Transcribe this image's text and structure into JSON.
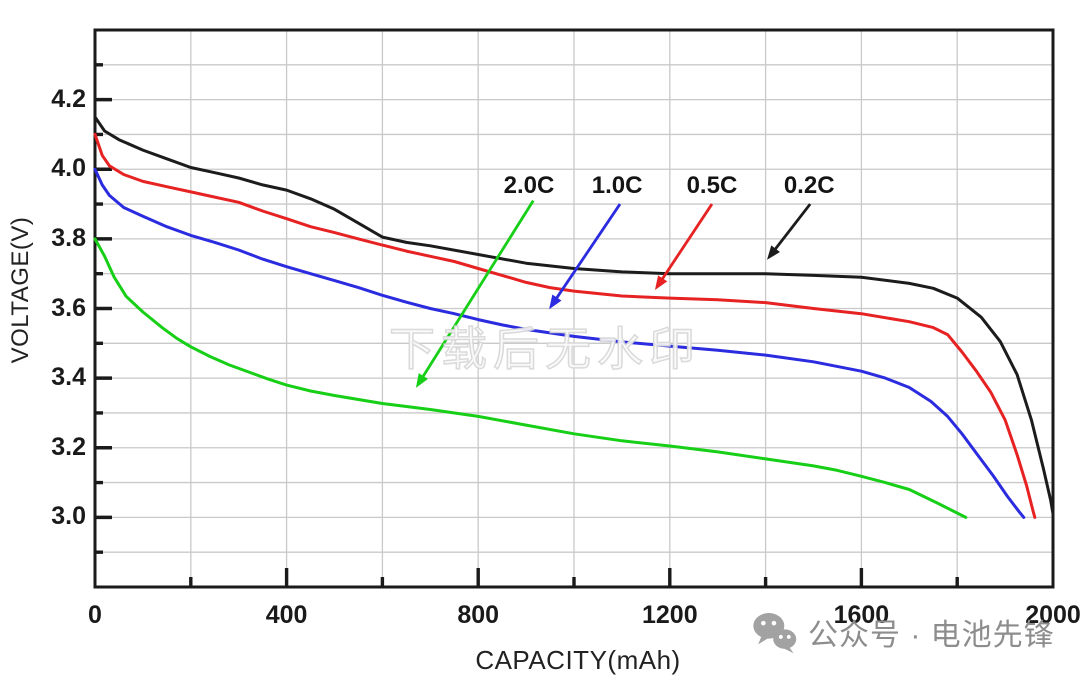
{
  "page": {
    "background": "#ffffff"
  },
  "watermarks": {
    "center_text": "下载后无水印",
    "footer_text": "公众号 · 电池先锋",
    "footer_icon": "wechat-icon",
    "footer_color": "#8d8d8d"
  },
  "chart_data": {
    "type": "line",
    "title": "",
    "xlabel": "CAPACITY(mAh)",
    "ylabel": "VOLTAGE(V)",
    "xlim": [
      0,
      2000
    ],
    "ylim": [
      2.8,
      4.4
    ],
    "grid": true,
    "grid_color": "#c9c9c9",
    "frame_color": "#1a1a1a",
    "x_minor_step": 200,
    "y_minor_step": 0.1,
    "x_ticks": [
      {
        "value": 0,
        "label": "0"
      },
      {
        "value": 400,
        "label": "400"
      },
      {
        "value": 800,
        "label": "800"
      },
      {
        "value": 1200,
        "label": "1200"
      },
      {
        "value": 1600,
        "label": "1600"
      },
      {
        "value": 2000,
        "label": "2000"
      }
    ],
    "y_ticks": [
      {
        "value": 4.2,
        "label": "4.2"
      },
      {
        "value": 4.0,
        "label": "4.0"
      },
      {
        "value": 3.8,
        "label": "3.8"
      },
      {
        "value": 3.6,
        "label": "3.6"
      },
      {
        "value": 3.4,
        "label": "3.4"
      },
      {
        "value": 3.2,
        "label": "3.2"
      },
      {
        "value": 3.0,
        "label": "3.0"
      }
    ],
    "series": [
      {
        "name": "2.0C",
        "color": "#17cf17",
        "points": [
          [
            0,
            3.8
          ],
          [
            20,
            3.75
          ],
          [
            40,
            3.69
          ],
          [
            65,
            3.635
          ],
          [
            100,
            3.59
          ],
          [
            140,
            3.545
          ],
          [
            170,
            3.515
          ],
          [
            200,
            3.49
          ],
          [
            240,
            3.462
          ],
          [
            280,
            3.438
          ],
          [
            320,
            3.418
          ],
          [
            360,
            3.398
          ],
          [
            400,
            3.38
          ],
          [
            450,
            3.363
          ],
          [
            500,
            3.35
          ],
          [
            600,
            3.327
          ],
          [
            700,
            3.31
          ],
          [
            800,
            3.29
          ],
          [
            900,
            3.265
          ],
          [
            1000,
            3.24
          ],
          [
            1100,
            3.22
          ],
          [
            1200,
            3.205
          ],
          [
            1300,
            3.188
          ],
          [
            1400,
            3.168
          ],
          [
            1500,
            3.148
          ],
          [
            1550,
            3.135
          ],
          [
            1600,
            3.118
          ],
          [
            1650,
            3.1
          ],
          [
            1700,
            3.08
          ],
          [
            1760,
            3.04
          ],
          [
            1818,
            3.0
          ]
        ]
      },
      {
        "name": "1.0C",
        "color": "#2b2bdf",
        "points": [
          [
            0,
            4.0
          ],
          [
            15,
            3.955
          ],
          [
            30,
            3.925
          ],
          [
            60,
            3.89
          ],
          [
            100,
            3.865
          ],
          [
            150,
            3.835
          ],
          [
            200,
            3.81
          ],
          [
            250,
            3.79
          ],
          [
            300,
            3.768
          ],
          [
            350,
            3.742
          ],
          [
            400,
            3.72
          ],
          [
            450,
            3.7
          ],
          [
            500,
            3.68
          ],
          [
            550,
            3.66
          ],
          [
            600,
            3.638
          ],
          [
            650,
            3.618
          ],
          [
            700,
            3.6
          ],
          [
            750,
            3.585
          ],
          [
            800,
            3.568
          ],
          [
            850,
            3.553
          ],
          [
            900,
            3.54
          ],
          [
            950,
            3.53
          ],
          [
            1000,
            3.52
          ],
          [
            1100,
            3.504
          ],
          [
            1200,
            3.492
          ],
          [
            1300,
            3.48
          ],
          [
            1400,
            3.466
          ],
          [
            1500,
            3.447
          ],
          [
            1600,
            3.42
          ],
          [
            1650,
            3.4
          ],
          [
            1700,
            3.373
          ],
          [
            1745,
            3.333
          ],
          [
            1780,
            3.29
          ],
          [
            1810,
            3.24
          ],
          [
            1845,
            3.175
          ],
          [
            1875,
            3.12
          ],
          [
            1905,
            3.06
          ],
          [
            1930,
            3.015
          ],
          [
            1939,
            3.0
          ]
        ]
      },
      {
        "name": "0.5C",
        "color": "#e62222",
        "points": [
          [
            0,
            4.1
          ],
          [
            15,
            4.04
          ],
          [
            30,
            4.01
          ],
          [
            60,
            3.985
          ],
          [
            100,
            3.965
          ],
          [
            150,
            3.95
          ],
          [
            200,
            3.935
          ],
          [
            250,
            3.92
          ],
          [
            300,
            3.905
          ],
          [
            350,
            3.88
          ],
          [
            400,
            3.858
          ],
          [
            450,
            3.835
          ],
          [
            500,
            3.818
          ],
          [
            550,
            3.8
          ],
          [
            600,
            3.782
          ],
          [
            650,
            3.765
          ],
          [
            700,
            3.75
          ],
          [
            750,
            3.735
          ],
          [
            800,
            3.715
          ],
          [
            850,
            3.695
          ],
          [
            900,
            3.675
          ],
          [
            950,
            3.66
          ],
          [
            1000,
            3.65
          ],
          [
            1100,
            3.636
          ],
          [
            1200,
            3.63
          ],
          [
            1300,
            3.625
          ],
          [
            1400,
            3.617
          ],
          [
            1500,
            3.6
          ],
          [
            1600,
            3.585
          ],
          [
            1700,
            3.562
          ],
          [
            1750,
            3.545
          ],
          [
            1780,
            3.525
          ],
          [
            1810,
            3.475
          ],
          [
            1840,
            3.42
          ],
          [
            1870,
            3.36
          ],
          [
            1900,
            3.28
          ],
          [
            1925,
            3.18
          ],
          [
            1945,
            3.09
          ],
          [
            1958,
            3.02
          ],
          [
            1962,
            3.0
          ]
        ]
      },
      {
        "name": "0.2C",
        "color": "#1c1c1c",
        "points": [
          [
            0,
            4.15
          ],
          [
            20,
            4.11
          ],
          [
            50,
            4.085
          ],
          [
            100,
            4.055
          ],
          [
            150,
            4.03
          ],
          [
            200,
            4.005
          ],
          [
            250,
            3.99
          ],
          [
            300,
            3.975
          ],
          [
            350,
            3.955
          ],
          [
            400,
            3.94
          ],
          [
            450,
            3.915
          ],
          [
            500,
            3.885
          ],
          [
            550,
            3.845
          ],
          [
            600,
            3.805
          ],
          [
            650,
            3.79
          ],
          [
            700,
            3.78
          ],
          [
            800,
            3.755
          ],
          [
            900,
            3.73
          ],
          [
            1000,
            3.715
          ],
          [
            1100,
            3.705
          ],
          [
            1200,
            3.7
          ],
          [
            1300,
            3.7
          ],
          [
            1400,
            3.7
          ],
          [
            1500,
            3.695
          ],
          [
            1600,
            3.69
          ],
          [
            1700,
            3.672
          ],
          [
            1750,
            3.658
          ],
          [
            1800,
            3.63
          ],
          [
            1850,
            3.575
          ],
          [
            1890,
            3.505
          ],
          [
            1925,
            3.41
          ],
          [
            1955,
            3.28
          ],
          [
            1980,
            3.14
          ],
          [
            1995,
            3.05
          ],
          [
            2000,
            3.01
          ]
        ]
      }
    ],
    "annotations": [
      {
        "label": "2.0C",
        "color": "#17cf17",
        "label_at": [
          906,
          3.952
        ],
        "arrow_from": [
          915,
          3.91
        ],
        "arrow_to": [
          670,
          3.372
        ]
      },
      {
        "label": "1.0C",
        "color": "#2b2bdf",
        "label_at": [
          1090,
          3.952
        ],
        "arrow_from": [
          1096,
          3.9
        ],
        "arrow_to": [
          948,
          3.598
        ]
      },
      {
        "label": "0.5C",
        "color": "#e62222",
        "label_at": [
          1288,
          3.952
        ],
        "arrow_from": [
          1288,
          3.9
        ],
        "arrow_to": [
          1169,
          3.653
        ]
      },
      {
        "label": "0.2C",
        "color": "#1c1c1c",
        "label_at": [
          1491,
          3.952
        ],
        "arrow_from": [
          1493,
          3.9
        ],
        "arrow_to": [
          1403,
          3.74
        ]
      }
    ]
  }
}
